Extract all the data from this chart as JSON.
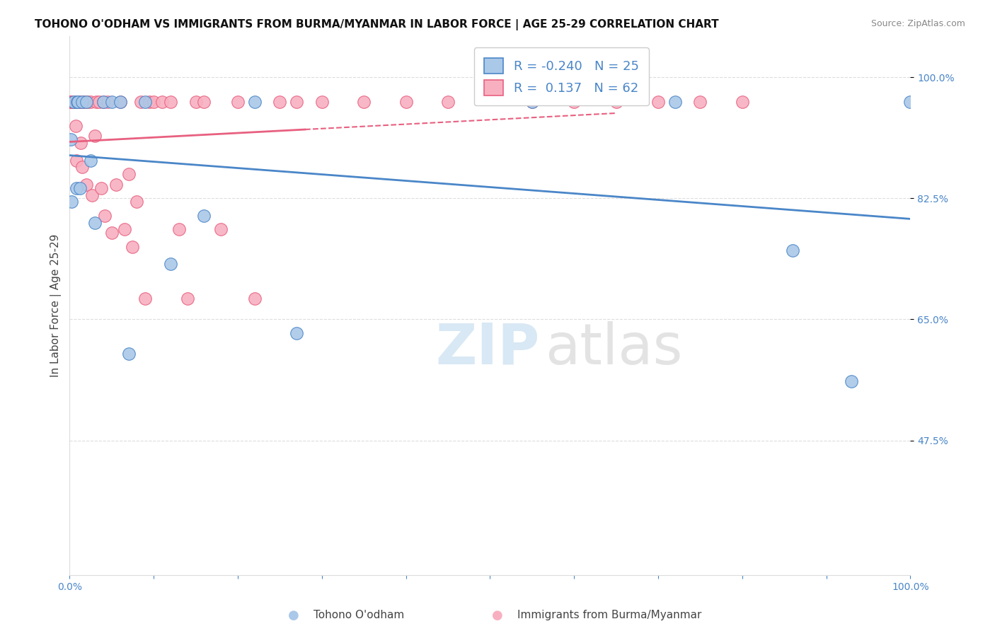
{
  "title": "TOHONO O'ODHAM VS IMMIGRANTS FROM BURMA/MYANMAR IN LABOR FORCE | AGE 25-29 CORRELATION CHART",
  "source": "Source: ZipAtlas.com",
  "ylabel": "In Labor Force | Age 25-29",
  "ytick_labels": [
    "100.0%",
    "82.5%",
    "65.0%",
    "47.5%"
  ],
  "ytick_values": [
    1.0,
    0.825,
    0.65,
    0.475
  ],
  "xlim": [
    0.0,
    1.0
  ],
  "ylim": [
    0.28,
    1.06
  ],
  "blue_color": "#aac8e8",
  "blue_line_color": "#4a86c8",
  "pink_color": "#f8b0c0",
  "pink_line_color": "#e86080",
  "r_blue": -0.24,
  "n_blue": 25,
  "r_pink": 0.137,
  "n_pink": 62,
  "blue_points_x": [
    0.001,
    0.002,
    0.005,
    0.008,
    0.009,
    0.01,
    0.012,
    0.015,
    0.02,
    0.025,
    0.03,
    0.04,
    0.05,
    0.06,
    0.07,
    0.09,
    0.12,
    0.16,
    0.22,
    0.27,
    0.55,
    0.72,
    0.86,
    0.93,
    1.0
  ],
  "blue_points_y": [
    0.91,
    0.82,
    0.965,
    0.84,
    0.965,
    0.965,
    0.84,
    0.965,
    0.965,
    0.88,
    0.79,
    0.965,
    0.965,
    0.965,
    0.6,
    0.965,
    0.73,
    0.8,
    0.965,
    0.63,
    0.965,
    0.965,
    0.75,
    0.56,
    0.965
  ],
  "pink_points_x": [
    0.0,
    0.0,
    0.0,
    0.0,
    0.002,
    0.003,
    0.004,
    0.005,
    0.007,
    0.008,
    0.009,
    0.01,
    0.01,
    0.012,
    0.013,
    0.014,
    0.015,
    0.016,
    0.018,
    0.02,
    0.022,
    0.025,
    0.027,
    0.03,
    0.032,
    0.035,
    0.038,
    0.04,
    0.042,
    0.045,
    0.05,
    0.055,
    0.06,
    0.065,
    0.07,
    0.075,
    0.08,
    0.085,
    0.09,
    0.095,
    0.1,
    0.11,
    0.12,
    0.13,
    0.14,
    0.15,
    0.16,
    0.18,
    0.2,
    0.22,
    0.25,
    0.27,
    0.3,
    0.35,
    0.4,
    0.45,
    0.55,
    0.6,
    0.65,
    0.7,
    0.75,
    0.8
  ],
  "pink_points_y": [
    0.965,
    0.965,
    0.965,
    0.965,
    0.965,
    0.965,
    0.965,
    0.965,
    0.93,
    0.88,
    0.965,
    0.965,
    0.965,
    0.965,
    0.905,
    0.965,
    0.87,
    0.965,
    0.965,
    0.845,
    0.965,
    0.965,
    0.83,
    0.915,
    0.965,
    0.965,
    0.84,
    0.965,
    0.8,
    0.965,
    0.775,
    0.845,
    0.965,
    0.78,
    0.86,
    0.755,
    0.82,
    0.965,
    0.68,
    0.965,
    0.965,
    0.965,
    0.965,
    0.78,
    0.68,
    0.965,
    0.965,
    0.78,
    0.965,
    0.68,
    0.965,
    0.965,
    0.965,
    0.965,
    0.965,
    0.965,
    0.965,
    0.965,
    0.965,
    0.965,
    0.965,
    0.965
  ],
  "grid_color": "#dddddd",
  "spine_color": "#dddddd",
  "tick_color": "#4a86c8",
  "text_color": "#444444",
  "title_fontsize": 11,
  "source_fontsize": 9,
  "tick_fontsize": 10,
  "ylabel_fontsize": 11,
  "legend_fontsize": 13
}
